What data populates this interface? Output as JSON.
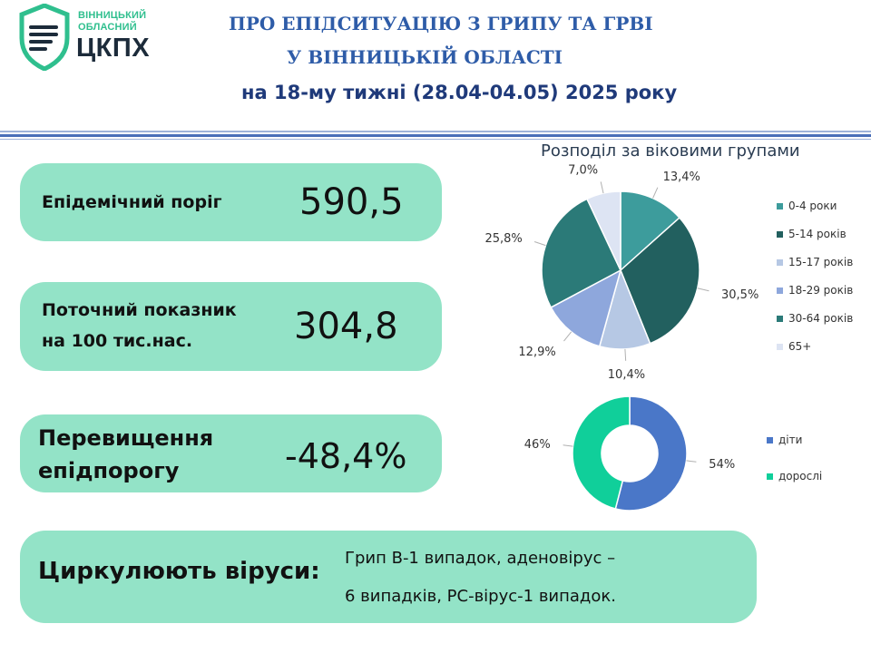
{
  "logo": {
    "line1": "ВІННИЦЬКИЙ",
    "line2": "ОБЛАСНИЙ",
    "main": "ЦКПХ",
    "green": "#2fbf8e",
    "dark": "#1c2b3a"
  },
  "header": {
    "title_line1": "ПРО ЕПІДСИТУАЦІЮ З ГРИПУ ТА ГРВІ",
    "title_line2": "У ВІННИЦЬКІЙ ОБЛАСТІ",
    "week_line": "на 18-му тижні (28.04-04.05) 2025 року"
  },
  "cards": {
    "threshold": {
      "label": "Епідемічний поріг",
      "value": "590,5"
    },
    "current": {
      "label_line1": "Поточний показник",
      "label_line2": "на 100 тис.нас.",
      "value": "304,8"
    },
    "excess": {
      "label_line1": "Перевищення",
      "label_line2": "епідпорогу",
      "value": "-48,4%"
    },
    "viruses": {
      "label": "Циркулюють віруси:",
      "text_line1": "Грип В-1 випадок,  аденовірус –",
      "text_line2": "6 випадків, РС-вірус-1 випадок."
    }
  },
  "colors": {
    "card_bg": "#93e3c7",
    "title_blue": "#2e5ca8"
  },
  "chart_data": [
    {
      "type": "pie",
      "title": "Розподіл за віковими групами",
      "categories": [
        "0-4 роки",
        "5-14 років",
        "15-17 років",
        "18-29 років",
        "30-64 років",
        "65+"
      ],
      "values": [
        13.4,
        30.5,
        10.4,
        12.9,
        25.8,
        7.0
      ],
      "data_labels": [
        "13,4%",
        "30,5%",
        "10,4%",
        "12,9%",
        "25,8%",
        "7,0%"
      ],
      "colors": [
        "#3d9c9c",
        "#22605f",
        "#b6c8e4",
        "#8ea7dc",
        "#2b7a78",
        "#dde4f3"
      ],
      "legend": "right"
    },
    {
      "type": "pie",
      "subtype": "doughnut",
      "title": "",
      "categories": [
        "діти",
        "дорослі"
      ],
      "values": [
        54,
        46
      ],
      "data_labels": [
        "54%",
        "46%"
      ],
      "colors": [
        "#4a77c8",
        "#10cf9a"
      ],
      "legend": "right"
    }
  ]
}
